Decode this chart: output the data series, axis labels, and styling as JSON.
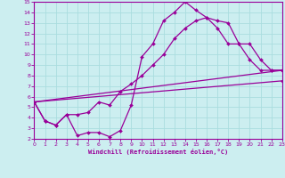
{
  "xlabel": "Windchill (Refroidissement éolien,°C)",
  "xlim": [
    0,
    23
  ],
  "ylim": [
    2,
    15
  ],
  "xticks": [
    0,
    1,
    2,
    3,
    4,
    5,
    6,
    7,
    8,
    9,
    10,
    11,
    12,
    13,
    14,
    15,
    16,
    17,
    18,
    19,
    20,
    21,
    22,
    23
  ],
  "yticks": [
    2,
    3,
    4,
    5,
    6,
    7,
    8,
    9,
    10,
    11,
    12,
    13,
    14,
    15
  ],
  "bg_color": "#cceef0",
  "grid_color": "#aadddf",
  "line_color": "#990099",
  "line1_x": [
    0,
    1,
    2,
    3,
    4,
    5,
    6,
    7,
    8,
    9,
    10,
    11,
    12,
    13,
    14,
    15,
    16,
    17,
    18,
    19,
    20,
    21,
    22,
    23
  ],
  "line1_y": [
    5.5,
    3.7,
    3.3,
    4.3,
    2.3,
    2.6,
    2.6,
    2.2,
    2.8,
    5.2,
    9.8,
    11.0,
    13.2,
    14.0,
    15.0,
    14.2,
    13.5,
    13.2,
    13.0,
    11.0,
    9.5,
    8.5,
    8.5,
    8.5
  ],
  "line2_x": [
    0,
    1,
    2,
    3,
    4,
    5,
    6,
    7,
    8,
    9,
    10,
    11,
    12,
    13,
    14,
    15,
    16,
    17,
    18,
    19,
    20,
    21,
    22,
    23
  ],
  "line2_y": [
    5.5,
    3.7,
    3.3,
    4.3,
    4.3,
    4.5,
    5.5,
    5.2,
    6.5,
    7.2,
    8.0,
    9.0,
    10.0,
    11.5,
    12.5,
    13.2,
    13.5,
    12.5,
    11.0,
    11.0,
    11.0,
    9.5,
    8.5,
    8.5
  ],
  "line3_x": [
    0,
    23
  ],
  "line3_y": [
    5.5,
    8.5
  ],
  "line4_x": [
    0,
    23
  ],
  "line4_y": [
    5.5,
    7.5
  ],
  "markersize": 2.0,
  "linewidth": 0.9
}
